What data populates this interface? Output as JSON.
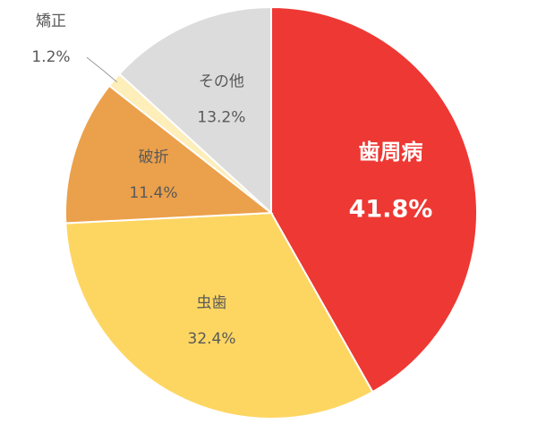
{
  "chart_data": {
    "type": "pie",
    "categories": [
      "歯周病",
      "虫歯",
      "破折",
      "矯正",
      "その他"
    ],
    "values": [
      41.8,
      32.4,
      11.4,
      1.2,
      13.2
    ],
    "value_labels": [
      "41.8%",
      "32.4%",
      "11.4%",
      "1.2%",
      "13.2%"
    ],
    "colors": [
      "#ee3833",
      "#fdd662",
      "#eba04b",
      "#fdeeba",
      "#dcdcdc"
    ]
  }
}
